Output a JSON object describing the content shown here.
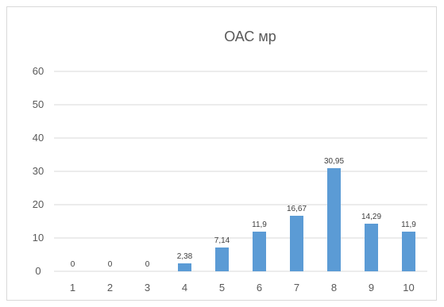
{
  "chart_data": {
    "type": "bar",
    "title": "ОАС мр",
    "categories": [
      "1",
      "2",
      "3",
      "4",
      "5",
      "6",
      "7",
      "8",
      "9",
      "10"
    ],
    "values": [
      0,
      0,
      0,
      2.38,
      7.14,
      11.9,
      16.67,
      30.95,
      14.29,
      11.9
    ],
    "data_labels": [
      "0",
      "0",
      "0",
      "2,38",
      "7,14",
      "11,9",
      "16,67",
      "30,95",
      "14,29",
      "11,9"
    ],
    "y_ticks": [
      "0",
      "10",
      "20",
      "30",
      "40",
      "50",
      "60"
    ],
    "ylim": [
      0,
      60
    ],
    "grid": true,
    "legend": "none",
    "colors": {
      "bar": "#5b9bd5",
      "grid": "#d9d9d9",
      "text": "#595959"
    }
  }
}
